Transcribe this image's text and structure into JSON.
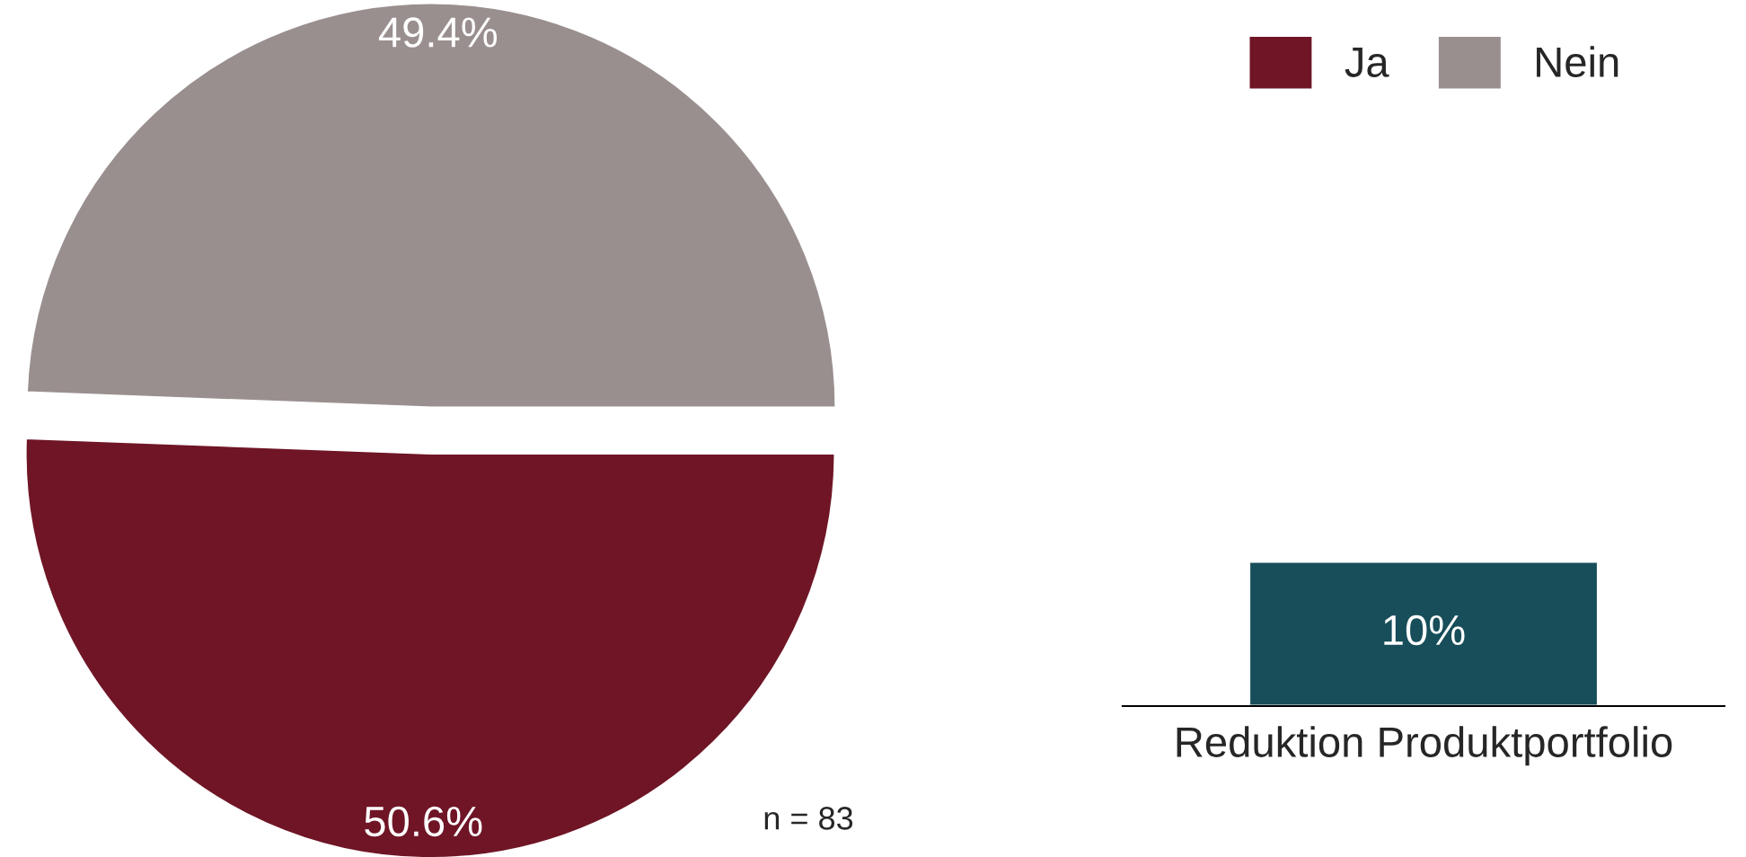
{
  "chart_data": [
    {
      "type": "pie",
      "categories": [
        "Ja",
        "Nein"
      ],
      "values": [
        50.6,
        49.4
      ],
      "colors": [
        "#6f1526",
        "#9a8f8f"
      ],
      "value_labels": [
        "50.6%",
        "49.4%"
      ],
      "legend": "top right",
      "annotations": [
        "n = 83"
      ]
    },
    {
      "type": "bar",
      "categories": [
        "Reduktion Produktportfolio"
      ],
      "values": [
        10
      ],
      "color": "#174e5a",
      "value_labels": [
        "10%"
      ],
      "ylim": [
        0,
        46
      ],
      "tick_labels": "x"
    }
  ]
}
